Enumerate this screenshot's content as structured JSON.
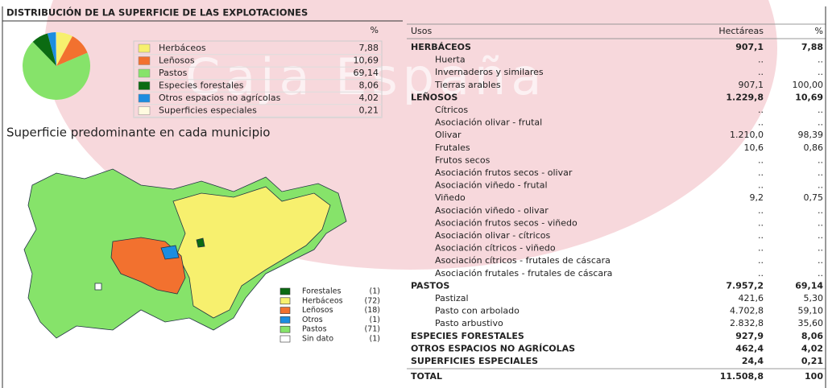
{
  "title": "DISTRIBUCIÓN DE LA SUPERFICIE DE LAS EXPLOTACIONES",
  "watermark": "Caja España",
  "pie": {
    "type": "pie",
    "header": "%",
    "categories": [
      "Herbáceos",
      "Leñosos",
      "Pastos",
      "Especies forestales",
      "Otros espacios no agrícolas",
      "Superficies especiales"
    ],
    "values": [
      7.88,
      10.69,
      69.14,
      8.06,
      4.02,
      0.21
    ],
    "value_labels": [
      "7,88",
      "10,69",
      "69,14",
      "8,06",
      "4,02",
      "0,21"
    ],
    "colors": [
      "#f7f06e",
      "#f2712f",
      "#86e36a",
      "#0b6b12",
      "#1c8de0",
      "#fffbe0"
    ]
  },
  "map": {
    "title": "Superficie predominante en cada municipio",
    "legend": [
      {
        "name": "Forestales",
        "count": "(1)",
        "color": "#0b6b12"
      },
      {
        "name": "Herbáceos",
        "count": "(72)",
        "color": "#f7f06e"
      },
      {
        "name": "Leñosos",
        "count": "(18)",
        "color": "#f2712f"
      },
      {
        "name": "Otros",
        "count": "(1)",
        "color": "#1c8de0"
      },
      {
        "name": "Pastos",
        "count": "(71)",
        "color": "#86e36a"
      },
      {
        "name": "Sin dato",
        "count": "(1)",
        "color": "#ffffff"
      }
    ]
  },
  "table": {
    "header": [
      "Usos",
      "Hectáreas",
      "%"
    ],
    "groups": [
      {
        "name": "HERBÁCEOS",
        "hectareas": "907,1",
        "pct": "7,88",
        "items": [
          [
            "Huerta",
            "..",
            ".."
          ],
          [
            "Invernaderos y similares",
            "..",
            ".."
          ],
          [
            "Tierras arables",
            "907,1",
            "100,00"
          ]
        ]
      },
      {
        "name": "LEÑOSOS",
        "hectareas": "1.229,8",
        "pct": "10,69",
        "items": [
          [
            "Cítricos",
            "..",
            ".."
          ],
          [
            "Asociación olivar - frutal",
            "..",
            ".."
          ],
          [
            "Olivar",
            "1.210,0",
            "98,39"
          ],
          [
            "Frutales",
            "10,6",
            "0,86"
          ],
          [
            "Frutos secos",
            "..",
            ".."
          ],
          [
            "Asociación frutos secos - olivar",
            "..",
            ".."
          ],
          [
            "Asociación viñedo - frutal",
            "..",
            ".."
          ],
          [
            "Viñedo",
            "9,2",
            "0,75"
          ],
          [
            "Asociación viñedo - olivar",
            "..",
            ".."
          ],
          [
            "Asociación frutos secos - viñedo",
            "..",
            ".."
          ],
          [
            "Asociación olivar - cítricos",
            "..",
            ".."
          ],
          [
            "Asociación cítricos - viñedo",
            "..",
            ".."
          ],
          [
            "Asociación cítricos - frutales de cáscara",
            "..",
            ".."
          ],
          [
            "Asociación frutales - frutales de cáscara",
            "..",
            ".."
          ]
        ]
      },
      {
        "name": "PASTOS",
        "hectareas": "7.957,2",
        "pct": "69,14",
        "items": [
          [
            "Pastizal",
            "421,6",
            "5,30"
          ],
          [
            "Pasto con arbolado",
            "4.702,8",
            "59,10"
          ],
          [
            "Pasto arbustivo",
            "2.832,8",
            "35,60"
          ]
        ]
      },
      {
        "name": "ESPECIES FORESTALES",
        "hectareas": "927,9",
        "pct": "8,06",
        "items": []
      },
      {
        "name": "OTROS ESPACIOS NO AGRÍCOLAS",
        "hectareas": "462,4",
        "pct": "4,02",
        "items": []
      },
      {
        "name": "SUPERFICIES ESPECIALES",
        "hectareas": "24,4",
        "pct": "0,21",
        "items": []
      }
    ],
    "total": [
      "TOTAL",
      "11.508,8",
      "100"
    ]
  }
}
